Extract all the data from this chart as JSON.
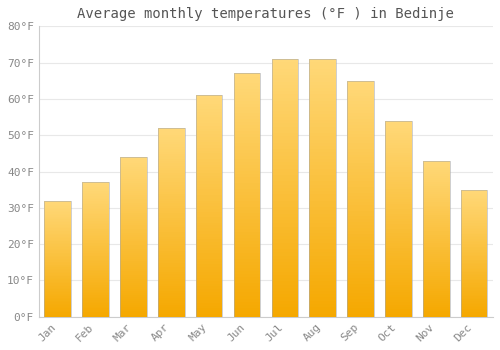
{
  "title": "Average monthly temperatures (°F ) in Bedinje",
  "months": [
    "Jan",
    "Feb",
    "Mar",
    "Apr",
    "May",
    "Jun",
    "Jul",
    "Aug",
    "Sep",
    "Oct",
    "Nov",
    "Dec"
  ],
  "values": [
    32,
    37,
    44,
    52,
    61,
    67,
    71,
    71,
    65,
    54,
    43,
    35
  ],
  "bar_color_bottom": "#F5A800",
  "bar_color_top": "#FFD878",
  "ylim": [
    0,
    80
  ],
  "yticks": [
    0,
    10,
    20,
    30,
    40,
    50,
    60,
    70,
    80
  ],
  "ytick_labels": [
    "0°F",
    "10°F",
    "20°F",
    "30°F",
    "40°F",
    "50°F",
    "60°F",
    "70°F",
    "80°F"
  ],
  "background_color": "#FFFFFF",
  "grid_color": "#E8E8E8",
  "title_fontsize": 10,
  "tick_fontsize": 8,
  "bar_width": 0.7,
  "n_segments": 80
}
